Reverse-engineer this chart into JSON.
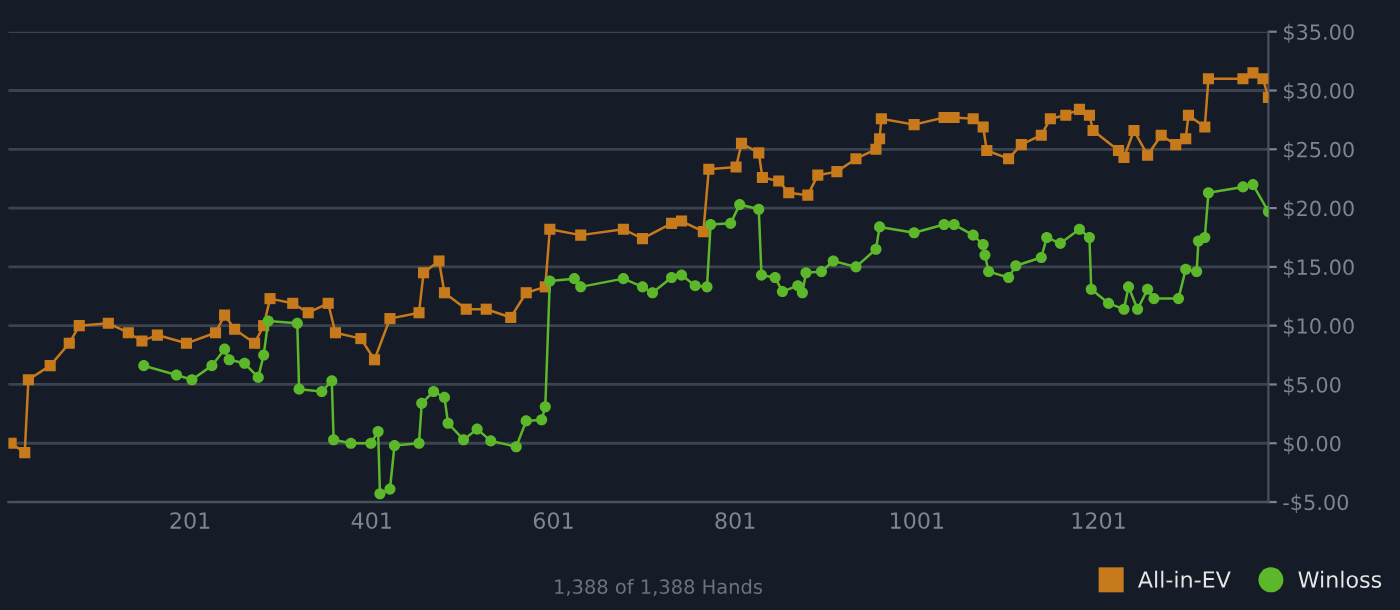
{
  "chart_data": {
    "type": "line",
    "xlim": [
      1,
      1388
    ],
    "xticks": [
      201,
      401,
      601,
      801,
      1001,
      1201
    ],
    "ylim": [
      -5,
      35
    ],
    "yticks": [
      {
        "value": -5,
        "label": "-$5.00"
      },
      {
        "value": 0,
        "label": "$0.00"
      },
      {
        "value": 5,
        "label": "$5.00"
      },
      {
        "value": 10,
        "label": "$10.00"
      },
      {
        "value": 15,
        "label": "$15.00"
      },
      {
        "value": 20,
        "label": "$20.00"
      },
      {
        "value": 25,
        "label": "$25.00"
      },
      {
        "value": 30,
        "label": "$30.00"
      },
      {
        "value": 35,
        "label": "$35.00"
      }
    ],
    "grid": "y",
    "legend": "bottom right",
    "annotations": [
      "1,388 of 1,388 Hands"
    ],
    "series": [
      {
        "name": "All-in-EV",
        "color": "#c77a1c",
        "marker": "square",
        "x": [
          4,
          19,
          23,
          47,
          68,
          79,
          111,
          133,
          148,
          165,
          197,
          229,
          239,
          250,
          272,
          282,
          289,
          314,
          331,
          353,
          361,
          389,
          404,
          421,
          453,
          458,
          475,
          481,
          505,
          527,
          554,
          571,
          592,
          597,
          631,
          678,
          699,
          731,
          742,
          766,
          772,
          802,
          808,
          827,
          831,
          849,
          860,
          881,
          892,
          913,
          934,
          956,
          960,
          962,
          998,
          1031,
          1042,
          1063,
          1074,
          1078,
          1102,
          1116,
          1138,
          1148,
          1165,
          1180,
          1191,
          1195,
          1223,
          1229,
          1240,
          1255,
          1270,
          1286,
          1297,
          1300,
          1318,
          1322,
          1360,
          1371,
          1382,
          1388
        ],
        "values": [
          0,
          -0.8,
          5.4,
          6.6,
          8.5,
          10,
          10.2,
          9.4,
          8.7,
          9.2,
          8.5,
          9.4,
          10.9,
          9.7,
          8.5,
          10,
          12.3,
          11.9,
          11.1,
          11.9,
          9.4,
          8.9,
          7.1,
          10.6,
          11.1,
          14.5,
          15.5,
          12.8,
          11.4,
          11.4,
          10.7,
          12.8,
          13.3,
          18.2,
          17.7,
          18.2,
          17.4,
          18.7,
          18.9,
          18,
          23.3,
          23.5,
          25.5,
          24.7,
          22.6,
          22.3,
          21.3,
          21.1,
          22.8,
          23.1,
          24.2,
          25,
          25.9,
          27.6,
          27.1,
          27.7,
          27.7,
          27.6,
          26.9,
          24.9,
          24.2,
          25.4,
          26.2,
          27.6,
          27.9,
          28.4,
          27.9,
          26.6,
          24.9,
          24.3,
          26.6,
          24.5,
          26.2,
          25.4,
          25.9,
          27.9,
          26.9,
          31,
          31,
          31.5,
          31,
          29.4
        ]
      },
      {
        "name": "Winloss",
        "color": "#5cb82a",
        "marker": "circle",
        "x": [
          150,
          186,
          203,
          225,
          239,
          244,
          261,
          276,
          282,
          287,
          319,
          321,
          346,
          357,
          359,
          378,
          400,
          408,
          410,
          421,
          426,
          453,
          456,
          469,
          481,
          485,
          502,
          517,
          532,
          560,
          571,
          588,
          592,
          597,
          624,
          631,
          678,
          699,
          710,
          731,
          742,
          757,
          770,
          774,
          796,
          806,
          827,
          830,
          845,
          853,
          870,
          875,
          879,
          896,
          909,
          934,
          956,
          960,
          998,
          1031,
          1042,
          1063,
          1074,
          1076,
          1080,
          1102,
          1110,
          1138,
          1144,
          1159,
          1180,
          1191,
          1193,
          1212,
          1229,
          1234,
          1244,
          1255,
          1262,
          1289,
          1297,
          1309,
          1311,
          1318,
          1322,
          1360,
          1371,
          1388
        ],
        "values": [
          6.6,
          5.8,
          5.4,
          6.6,
          8,
          7.1,
          6.8,
          5.6,
          7.5,
          10.4,
          10.2,
          4.6,
          4.4,
          5.3,
          0.3,
          0,
          0,
          1,
          -4.3,
          -3.9,
          -0.2,
          0,
          3.4,
          4.4,
          3.9,
          1.7,
          0.3,
          1.2,
          0.2,
          -0.3,
          1.9,
          2,
          3.1,
          13.8,
          14,
          13.3,
          14,
          13.3,
          12.8,
          14.1,
          14.3,
          13.4,
          13.3,
          18.6,
          18.7,
          20.3,
          19.9,
          14.3,
          14.1,
          12.9,
          13.4,
          12.8,
          14.5,
          14.6,
          15.5,
          15,
          16.5,
          18.4,
          17.9,
          18.6,
          18.6,
          17.7,
          16.9,
          16,
          14.6,
          14.1,
          15.1,
          15.8,
          17.5,
          17,
          18.2,
          17.5,
          13.1,
          11.9,
          11.4,
          13.3,
          11.4,
          13.1,
          12.3,
          12.3,
          14.8,
          14.6,
          17.2,
          17.5,
          21.3,
          21.8,
          22,
          19.7
        ]
      }
    ]
  }
}
